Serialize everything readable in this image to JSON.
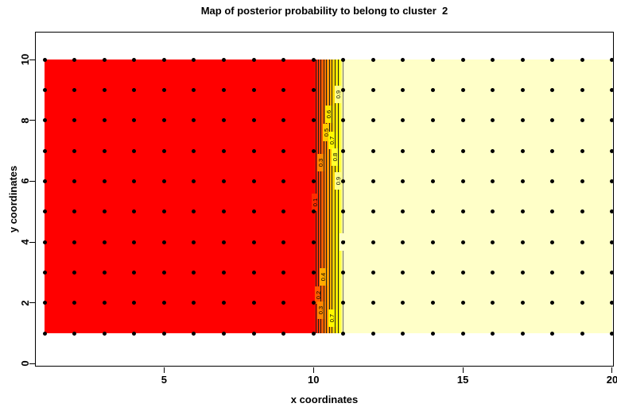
{
  "chart_data": {
    "type": "filled-contour-map",
    "title": "Map of posterior probability to belong to cluster  2",
    "xlabel": "x coordinates",
    "ylabel": "y coordinates",
    "x_ticks": [
      "5",
      "10",
      "15",
      "20"
    ],
    "y_ticks": [
      "0",
      "2",
      "4",
      "6",
      "8",
      "10"
    ],
    "x_tick_values": [
      5,
      10,
      15,
      20
    ],
    "y_tick_values": [
      0,
      2,
      4,
      6,
      8,
      10
    ],
    "xlim": [
      0.68,
      20.1
    ],
    "ylim": [
      -0.12,
      10.92
    ],
    "legend_position": "none",
    "grid": false,
    "grid_points": {
      "x_from": 1,
      "x_to": 20,
      "y_from": 1,
      "y_to": 10,
      "step": 1,
      "color": "#000000",
      "marker": "filled-circle"
    },
    "fill_colors": {
      "low_probability_region": "#FF0000",
      "transition_band": [
        "#FF0000",
        "#FF4900",
        "#FF9200",
        "#FFDB00",
        "#FFFF00",
        "#FFFFC8"
      ],
      "high_probability_region": "#FFFFC8"
    },
    "gradient_stops": [
      {
        "color": "#FF0000",
        "pos": 0
      },
      {
        "color": "#FF0000",
        "pos": 47.4
      },
      {
        "color": "#FF4900",
        "pos": 48.6
      },
      {
        "color": "#FF9200",
        "pos": 49.9
      },
      {
        "color": "#FFDB00",
        "pos": 51.0
      },
      {
        "color": "#FFFF00",
        "pos": 51.9
      },
      {
        "color": "#FFFFC8",
        "pos": 52.6
      },
      {
        "color": "#FFFFC8",
        "pos": 100
      }
    ],
    "contours": [
      {
        "level": "0.1",
        "x": 10.08,
        "label_y": [
          5.3
        ],
        "line_color": "#1c1c1c",
        "label_bg": "#FF2D00"
      },
      {
        "level": "0.2",
        "x": 10.17,
        "label_y": [
          2.25
        ],
        "line_color": "#1c1c1c",
        "label_bg": "#FF5B00"
      },
      {
        "level": "0.3",
        "x": 10.26,
        "label_y": [
          6.6,
          1.75
        ],
        "line_color": "#1c1c1c",
        "label_bg": "#FF8800"
      },
      {
        "level": "0.4",
        "x": 10.35,
        "label_y": [
          2.85
        ],
        "line_color": "#1c1c1c",
        "label_bg": "#FFAA00"
      },
      {
        "level": "0.5",
        "x": 10.44,
        "label_y": [
          7.6
        ],
        "line_color": "#1c1c1c",
        "label_bg": "#FFC800"
      },
      {
        "level": "0.6",
        "x": 10.53,
        "label_y": [
          8.2
        ],
        "line_color": "#1c1c1c",
        "label_bg": "#FFE600"
      },
      {
        "level": "0.7",
        "x": 10.63,
        "label_y": [
          7.35,
          1.5
        ],
        "line_color": "#1c1c1c",
        "label_bg": "#FFF700"
      },
      {
        "level": "0.8",
        "x": 10.73,
        "label_y": [
          6.8
        ],
        "line_color": "#1c1c1c",
        "label_bg": "#FFFF2E"
      },
      {
        "level": "0.9",
        "x": 10.84,
        "label_y": [
          8.85,
          6.0
        ],
        "line_color": "#1c1c1c",
        "label_bg": "#FFFF8C"
      },
      {
        "level": "1",
        "x": 11.0,
        "label_y": [
          4.0
        ],
        "line_color": "#6e6e6e",
        "label_bg": "#FFFFC8"
      }
    ]
  }
}
